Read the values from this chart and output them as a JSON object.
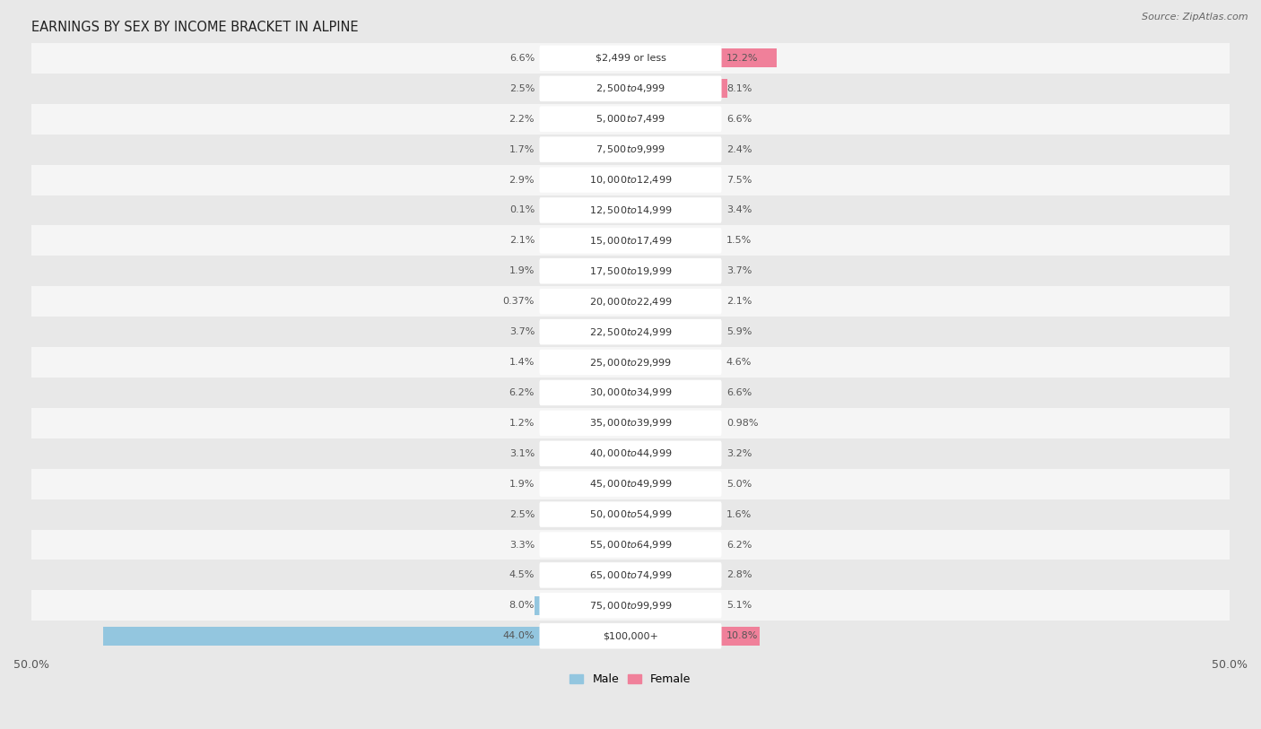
{
  "title": "EARNINGS BY SEX BY INCOME BRACKET IN ALPINE",
  "source": "Source: ZipAtlas.com",
  "categories": [
    "$2,499 or less",
    "$2,500 to $4,999",
    "$5,000 to $7,499",
    "$7,500 to $9,999",
    "$10,000 to $12,499",
    "$12,500 to $14,999",
    "$15,000 to $17,499",
    "$17,500 to $19,999",
    "$20,000 to $22,499",
    "$22,500 to $24,999",
    "$25,000 to $29,999",
    "$30,000 to $34,999",
    "$35,000 to $39,999",
    "$40,000 to $44,999",
    "$45,000 to $49,999",
    "$50,000 to $54,999",
    "$55,000 to $64,999",
    "$65,000 to $74,999",
    "$75,000 to $99,999",
    "$100,000+"
  ],
  "male_values": [
    6.6,
    2.5,
    2.2,
    1.7,
    2.9,
    0.1,
    2.1,
    1.9,
    0.37,
    3.7,
    1.4,
    6.2,
    1.2,
    3.1,
    1.9,
    2.5,
    3.3,
    4.5,
    8.0,
    44.0
  ],
  "female_values": [
    12.2,
    8.1,
    6.6,
    2.4,
    7.5,
    3.4,
    1.5,
    3.7,
    2.1,
    5.9,
    4.6,
    6.6,
    0.98,
    3.2,
    5.0,
    1.6,
    6.2,
    2.8,
    5.1,
    10.8
  ],
  "male_color": "#93c6df",
  "female_color": "#f0809a",
  "male_label": "Male",
  "female_label": "Female",
  "axis_max": 50.0,
  "bg_color": "#e8e8e8",
  "row_light": "#f5f5f5",
  "row_dark": "#e8e8e8",
  "title_fontsize": 10.5,
  "label_fontsize": 8.0,
  "category_fontsize": 8.0,
  "source_fontsize": 8.0
}
